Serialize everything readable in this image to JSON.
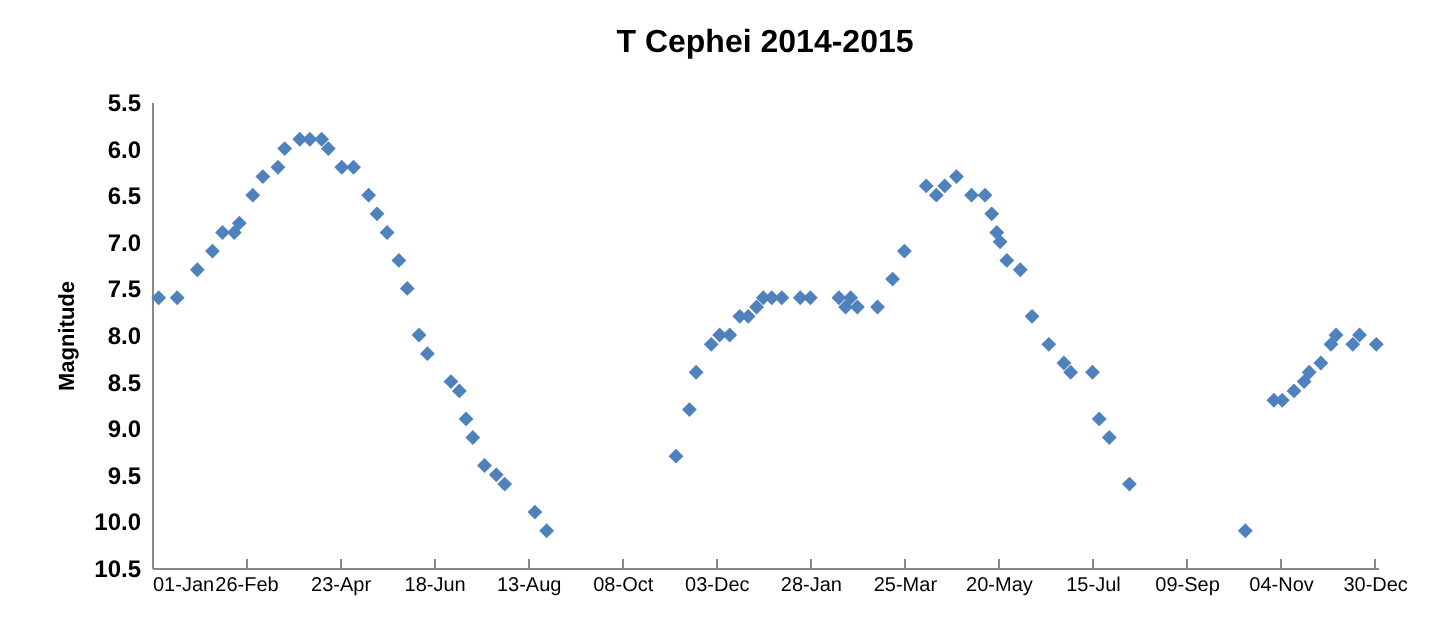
{
  "chart_data": {
    "type": "scatter",
    "title": "T Cephei 2014-2015",
    "ylabel": "Magnitude",
    "marker": "diamond",
    "grid": false,
    "xlim": [
      "2014-01-01",
      "2016-01-01"
    ],
    "xticks": [
      {
        "value": "2014-01-01",
        "label": "01-Jan"
      },
      {
        "value": "2014-02-26",
        "label": "26-Feb"
      },
      {
        "value": "2014-04-23",
        "label": "23-Apr"
      },
      {
        "value": "2014-06-18",
        "label": "18-Jun"
      },
      {
        "value": "2014-08-13",
        "label": "13-Aug"
      },
      {
        "value": "2014-10-08",
        "label": "08-Oct"
      },
      {
        "value": "2014-12-03",
        "label": "03-Dec"
      },
      {
        "value": "2015-01-28",
        "label": "28-Jan"
      },
      {
        "value": "2015-03-25",
        "label": "25-Mar"
      },
      {
        "value": "2015-05-20",
        "label": "20-May"
      },
      {
        "value": "2015-07-15",
        "label": "15-Jul"
      },
      {
        "value": "2015-09-09",
        "label": "09-Sep"
      },
      {
        "value": "2015-11-04",
        "label": "04-Nov"
      },
      {
        "value": "2015-12-30",
        "label": "30-Dec"
      }
    ],
    "ylim": [
      10.5,
      5.5
    ],
    "yticks": [
      {
        "value": 5.5,
        "label": "5.5"
      },
      {
        "value": 6,
        "label": "6.0"
      },
      {
        "value": 6.5,
        "label": "6.5"
      },
      {
        "value": 7,
        "label": "7.0"
      },
      {
        "value": 7.5,
        "label": "7.5"
      },
      {
        "value": 8,
        "label": "8.0"
      },
      {
        "value": 8.5,
        "label": "8.5"
      },
      {
        "value": 9,
        "label": "9.0"
      },
      {
        "value": 9.5,
        "label": "9.5"
      },
      {
        "value": 10,
        "label": "10.0"
      },
      {
        "value": 10.5,
        "label": "10.5"
      }
    ],
    "series": [
      {
        "color": "#4f81bd",
        "x": [
          "2014-01-05",
          "2014-01-16",
          "2014-01-28",
          "2014-02-06",
          "2014-02-12",
          "2014-02-19",
          "2014-02-22",
          "2014-03-02",
          "2014-03-08",
          "2014-03-17",
          "2014-03-21",
          "2014-03-30",
          "2014-04-05",
          "2014-04-12",
          "2014-04-16",
          "2014-04-24",
          "2014-05-01",
          "2014-05-10",
          "2014-05-15",
          "2014-05-21",
          "2014-05-28",
          "2014-06-02",
          "2014-06-09",
          "2014-06-14",
          "2014-06-28",
          "2014-07-03",
          "2014-07-07",
          "2014-07-11",
          "2014-07-18",
          "2014-07-25",
          "2014-07-30",
          "2014-08-17",
          "2014-08-24",
          "2014-11-09",
          "2014-11-17",
          "2014-11-21",
          "2014-11-30",
          "2014-12-05",
          "2014-12-11",
          "2014-12-17",
          "2014-12-22",
          "2014-12-27",
          "2014-12-31",
          "2015-01-05",
          "2015-01-11",
          "2015-01-22",
          "2015-01-28",
          "2015-02-14",
          "2015-02-18",
          "2015-02-21",
          "2015-02-25",
          "2015-03-09",
          "2015-03-18",
          "2015-03-25",
          "2015-04-07",
          "2015-04-13",
          "2015-04-18",
          "2015-04-25",
          "2015-05-04",
          "2015-05-12",
          "2015-05-16",
          "2015-05-19",
          "2015-05-21",
          "2015-05-25",
          "2015-06-02",
          "2015-06-09",
          "2015-06-19",
          "2015-06-28",
          "2015-07-02",
          "2015-07-15",
          "2015-07-19",
          "2015-07-25",
          "2015-08-06",
          "2015-10-14",
          "2015-10-31",
          "2015-11-05",
          "2015-11-12",
          "2015-11-18",
          "2015-11-21",
          "2015-11-28",
          "2015-12-04",
          "2015-12-07",
          "2015-12-17",
          "2015-12-21",
          "2015-12-31"
        ],
        "values": [
          7.6,
          7.6,
          7.3,
          7.1,
          6.9,
          6.9,
          6.8,
          6.5,
          6.3,
          6.2,
          6.0,
          5.9,
          5.9,
          5.9,
          6.0,
          6.2,
          6.2,
          6.5,
          6.7,
          6.9,
          7.2,
          7.5,
          8.0,
          8.2,
          8.5,
          8.6,
          8.9,
          9.1,
          9.4,
          9.5,
          9.6,
          9.9,
          10.1,
          9.3,
          8.8,
          8.4,
          8.1,
          8.0,
          8.0,
          7.8,
          7.8,
          7.7,
          7.6,
          7.6,
          7.6,
          7.6,
          7.6,
          7.6,
          7.7,
          7.6,
          7.7,
          7.7,
          7.4,
          7.1,
          6.4,
          6.5,
          6.4,
          6.3,
          6.5,
          6.5,
          6.7,
          6.9,
          7.0,
          7.2,
          7.3,
          7.8,
          8.1,
          8.3,
          8.4,
          8.4,
          8.9,
          9.1,
          9.6,
          10.1,
          8.7,
          8.7,
          8.6,
          8.5,
          8.4,
          8.3,
          8.1,
          8.0,
          8.1,
          8.0,
          8.1
        ]
      }
    ]
  }
}
